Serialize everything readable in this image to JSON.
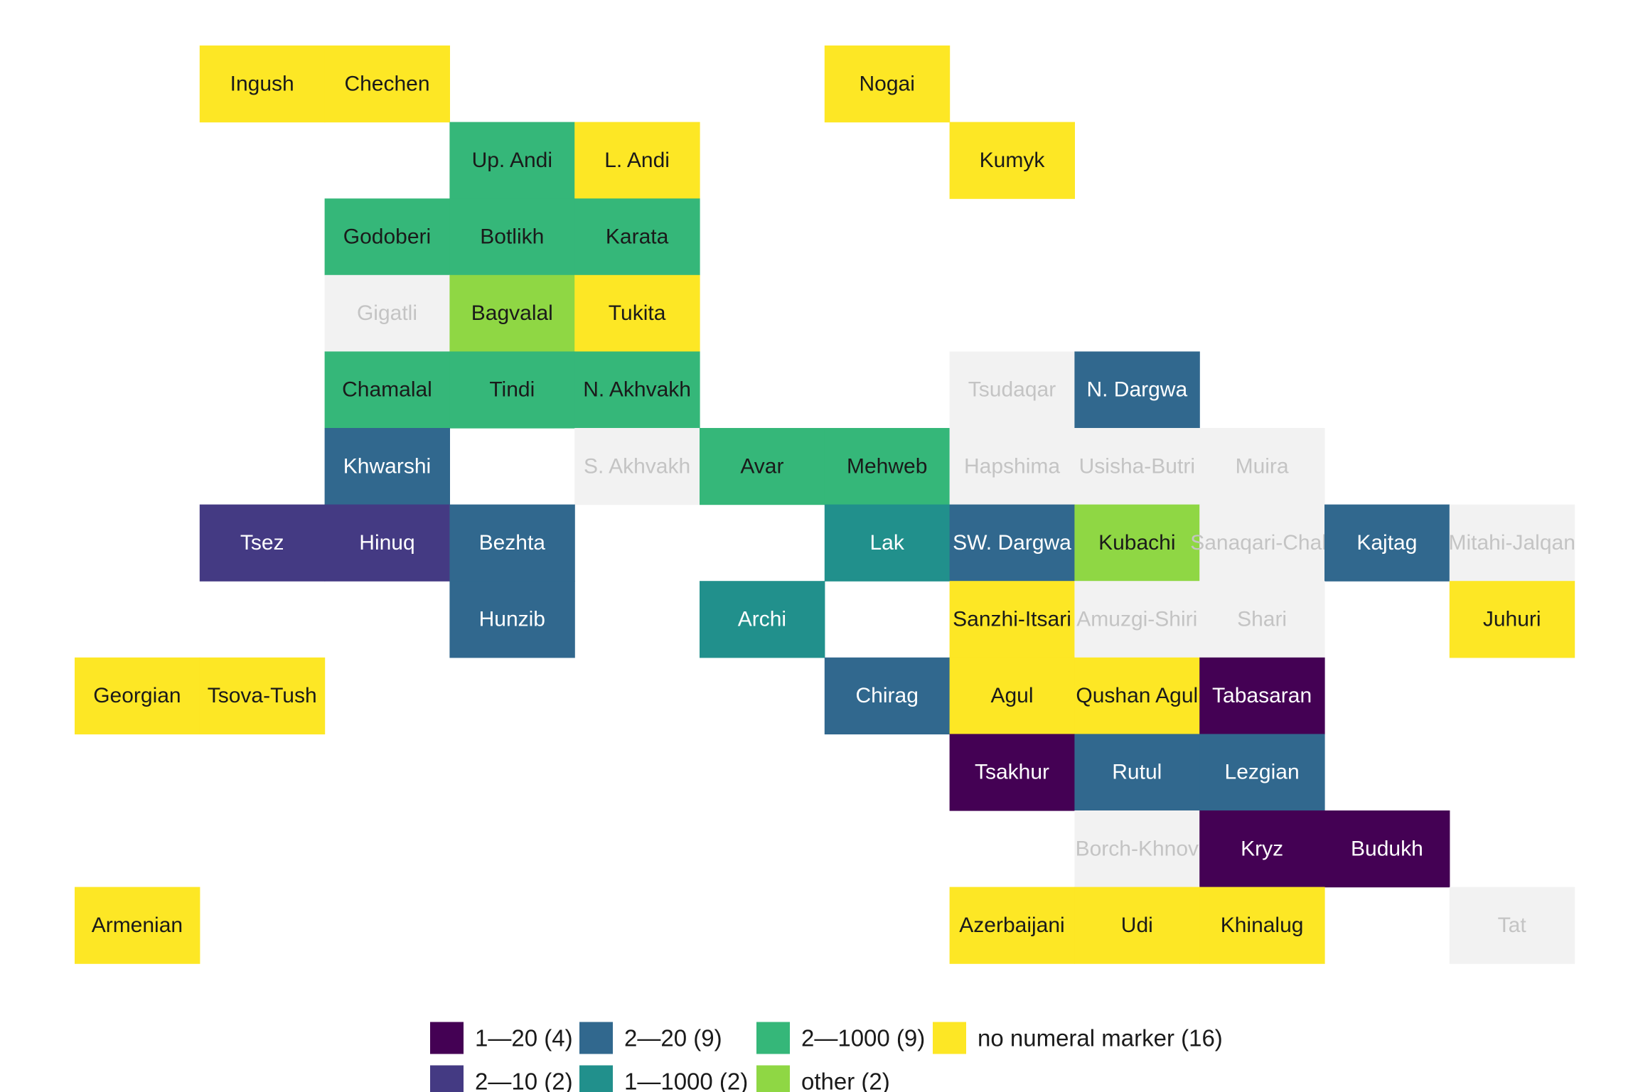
{
  "colors": {
    "c1_20": "#440154",
    "c2_10": "#443a83",
    "c2_20": "#31688e",
    "c1_1000": "#21908c",
    "c2_1000": "#35b779",
    "other": "#8fd744",
    "none": "#fde725",
    "missing": "#f2f2f2"
  },
  "cells": [
    {
      "name": "Ingush",
      "cat": "none",
      "col": 1,
      "row": 0
    },
    {
      "name": "Chechen",
      "cat": "none",
      "col": 2,
      "row": 0
    },
    {
      "name": "Nogai",
      "cat": "none",
      "col": 6,
      "row": 0
    },
    {
      "name": "Up. Andi",
      "cat": "c2_1000",
      "col": 3,
      "row": 1
    },
    {
      "name": "L. Andi",
      "cat": "none",
      "col": 4,
      "row": 1
    },
    {
      "name": "Kumyk",
      "cat": "none",
      "col": 7,
      "row": 1
    },
    {
      "name": "Godoberi",
      "cat": "c2_1000",
      "col": 2,
      "row": 2
    },
    {
      "name": "Botlikh",
      "cat": "c2_1000",
      "col": 3,
      "row": 2
    },
    {
      "name": "Karata",
      "cat": "c2_1000",
      "col": 4,
      "row": 2
    },
    {
      "name": "Gigatli",
      "cat": "missing",
      "col": 2,
      "row": 3
    },
    {
      "name": "Bagvalal",
      "cat": "other",
      "col": 3,
      "row": 3
    },
    {
      "name": "Tukita",
      "cat": "none",
      "col": 4,
      "row": 3
    },
    {
      "name": "Chamalal",
      "cat": "c2_1000",
      "col": 2,
      "row": 4
    },
    {
      "name": "Tindi",
      "cat": "c2_1000",
      "col": 3,
      "row": 4
    },
    {
      "name": "N. Akhvakh",
      "cat": "c2_1000",
      "col": 4,
      "row": 4
    },
    {
      "name": "Tsudaqar",
      "cat": "missing",
      "col": 7,
      "row": 4
    },
    {
      "name": "N. Dargwa",
      "cat": "c2_20",
      "col": 8,
      "row": 4
    },
    {
      "name": "Khwarshi",
      "cat": "c2_20",
      "col": 2,
      "row": 5
    },
    {
      "name": "S. Akhvakh",
      "cat": "missing",
      "col": 4,
      "row": 5
    },
    {
      "name": "Avar",
      "cat": "c2_1000",
      "col": 5,
      "row": 5
    },
    {
      "name": "Mehweb",
      "cat": "c2_1000",
      "col": 6,
      "row": 5
    },
    {
      "name": "Hapshima",
      "cat": "missing",
      "col": 7,
      "row": 5
    },
    {
      "name": "Usisha-Butri",
      "cat": "missing",
      "col": 8,
      "row": 5
    },
    {
      "name": "Muira",
      "cat": "missing",
      "col": 9,
      "row": 5
    },
    {
      "name": "Tsez",
      "cat": "c2_10",
      "col": 1,
      "row": 6
    },
    {
      "name": "Hinuq",
      "cat": "c2_10",
      "col": 2,
      "row": 6
    },
    {
      "name": "Bezhta",
      "cat": "c2_20",
      "col": 3,
      "row": 6
    },
    {
      "name": "Lak",
      "cat": "c1_1000",
      "col": 6,
      "row": 6
    },
    {
      "name": "SW. Dargwa",
      "cat": "c2_20",
      "col": 7,
      "row": 6
    },
    {
      "name": "Kubachi",
      "cat": "other",
      "col": 8,
      "row": 6
    },
    {
      "name": "Sanaqari-Chah",
      "cat": "missing",
      "col": 9,
      "row": 6
    },
    {
      "name": "Kajtag",
      "cat": "c2_20",
      "col": 10,
      "row": 6
    },
    {
      "name": "Mitahi-Jalqan",
      "cat": "missing",
      "col": 11,
      "row": 6
    },
    {
      "name": "Hunzib",
      "cat": "c2_20",
      "col": 3,
      "row": 7
    },
    {
      "name": "Archi",
      "cat": "c1_1000",
      "col": 5,
      "row": 7
    },
    {
      "name": "Sanzhi-Itsari",
      "cat": "none",
      "col": 7,
      "row": 7
    },
    {
      "name": "Amuzgi-Shiri",
      "cat": "missing",
      "col": 8,
      "row": 7
    },
    {
      "name": "Shari",
      "cat": "missing",
      "col": 9,
      "row": 7
    },
    {
      "name": "Juhuri",
      "cat": "none",
      "col": 11,
      "row": 7
    },
    {
      "name": "Georgian",
      "cat": "none",
      "col": 0,
      "row": 8
    },
    {
      "name": "Tsova-Tush",
      "cat": "none",
      "col": 1,
      "row": 8
    },
    {
      "name": "Chirag",
      "cat": "c2_20",
      "col": 6,
      "row": 8
    },
    {
      "name": "Agul",
      "cat": "none",
      "col": 7,
      "row": 8
    },
    {
      "name": "Qushan Agul",
      "cat": "none",
      "col": 8,
      "row": 8
    },
    {
      "name": "Tabasaran",
      "cat": "c1_20",
      "col": 9,
      "row": 8
    },
    {
      "name": "Tsakhur",
      "cat": "c1_20",
      "col": 7,
      "row": 9
    },
    {
      "name": "Rutul",
      "cat": "c2_20",
      "col": 8,
      "row": 9
    },
    {
      "name": "Lezgian",
      "cat": "c2_20",
      "col": 9,
      "row": 9
    },
    {
      "name": "Borch-Khnov",
      "cat": "missing",
      "col": 8,
      "row": 10
    },
    {
      "name": "Kryz",
      "cat": "c1_20",
      "col": 9,
      "row": 10
    },
    {
      "name": "Budukh",
      "cat": "c1_20",
      "col": 10,
      "row": 10
    },
    {
      "name": "Armenian",
      "cat": "none",
      "col": 0,
      "row": 11
    },
    {
      "name": "Azerbaijani",
      "cat": "none",
      "col": 7,
      "row": 11
    },
    {
      "name": "Udi",
      "cat": "none",
      "col": 8,
      "row": 11
    },
    {
      "name": "Khinalug",
      "cat": "none",
      "col": 9,
      "row": 11
    },
    {
      "name": "Tat",
      "cat": "missing",
      "col": 11,
      "row": 11
    }
  ],
  "legend": [
    {
      "cat": "c1_20",
      "label": "1—20 (4)"
    },
    {
      "cat": "c2_10",
      "label": "2—10 (2)"
    },
    {
      "cat": "c2_20",
      "label": "2—20 (9)"
    },
    {
      "cat": "c1_1000",
      "label": "1—1000 (2)"
    },
    {
      "cat": "c2_1000",
      "label": "2—1000 (9)"
    },
    {
      "cat": "other",
      "label": "other (2)"
    },
    {
      "cat": "none",
      "label": "no numeral marker (16)"
    }
  ]
}
